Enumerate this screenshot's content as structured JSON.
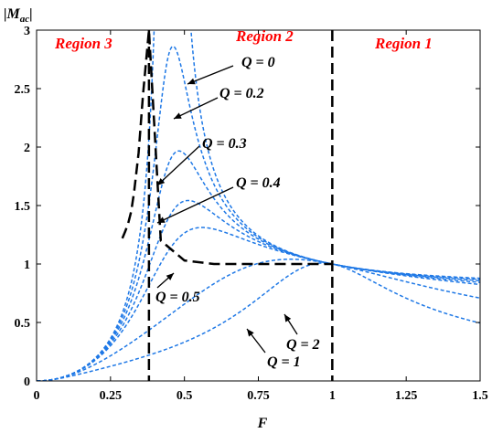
{
  "chart_data": {
    "type": "line",
    "xlabel": "F",
    "ylabel": "|M",
    "ylabel_sub": "ac",
    "ylabel_close": "|",
    "xlim": [
      0,
      1.5
    ],
    "ylim": [
      0,
      3
    ],
    "x_ticks": [
      "0",
      "0.25",
      "0.5",
      "0.75",
      "1",
      "1.25",
      "1.5"
    ],
    "y_ticks": [
      "0",
      "0.5",
      "1",
      "1.5",
      "2",
      "2.5",
      "3"
    ],
    "grid": false,
    "series_color": "#1e78e6",
    "boundary_color": "#000000",
    "region_color": "#ff0000",
    "k": 4,
    "series": [
      {
        "label": "Q = 0",
        "Q": 0
      },
      {
        "label": "Q = 0.2",
        "Q": 0.2
      },
      {
        "label": "Q = 0.3",
        "Q": 0.3
      },
      {
        "label": "Q = 0.4",
        "Q": 0.4
      },
      {
        "label": "Q = 0.5",
        "Q": 0.5
      },
      {
        "label": "Q = 1",
        "Q": 1
      },
      {
        "label": "Q = 2",
        "Q": 2
      }
    ],
    "peak_boundary": {
      "x": [
        0.29,
        0.3,
        0.31,
        0.32,
        0.33,
        0.345,
        0.36,
        0.38,
        0.42,
        0.5,
        0.6,
        0.7,
        0.8,
        0.9,
        1.0
      ],
      "y": [
        1.22,
        1.28,
        1.35,
        1.45,
        1.62,
        1.95,
        2.45,
        3.0,
        1.2,
        1.03,
        1.0,
        1.0,
        1.0,
        1.0,
        1.0
      ]
    },
    "regions": [
      {
        "text": "Region 3"
      },
      {
        "text": "Region 2"
      },
      {
        "text": "Region 1"
      }
    ],
    "region_boundaries_x": [
      0.38,
      1.0
    ],
    "annotations": [
      "Q = 0",
      "Q = 0.2",
      "Q = 0.3",
      "Q = 0.4",
      "Q = 0.5",
      "Q = 1",
      "Q = 2"
    ]
  }
}
